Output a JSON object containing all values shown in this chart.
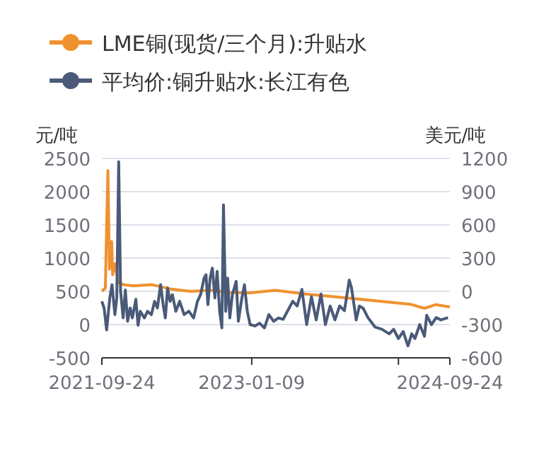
{
  "chart_data": {
    "type": "line",
    "ylabel": "元/吨",
    "y2label": "美元/吨",
    "grid": "y",
    "legend": "top left",
    "xlim": [
      "2021-09-24",
      "2024-09-24"
    ],
    "xticks": [
      {
        "value": "2021-09-24",
        "label": "2021-09-24"
      },
      {
        "value": "2023-01-09",
        "label": "2023-01-09"
      },
      {
        "value": "2024-04-15",
        "label": null
      },
      {
        "value": "2024-09-24",
        "label": "2024-09-24"
      }
    ],
    "ylim": [
      -500,
      2500
    ],
    "yticks": [
      -500,
      0,
      500,
      1000,
      1500,
      2000,
      2500
    ],
    "y2lim": [
      -600,
      1200
    ],
    "y2ticks": [
      -600,
      -300,
      0,
      300,
      600,
      900,
      1200
    ],
    "series": [
      {
        "name": "LME铜(现货/三个月):升贴水",
        "color": "#f0912f",
        "axis": "y2",
        "x": [
          "2021-09-24",
          "2021-10-05",
          "2021-10-13",
          "2021-10-18",
          "2021-10-21",
          "2021-10-25",
          "2021-10-28",
          "2021-11-05",
          "2021-11-15",
          "2021-12-01",
          "2022-01-01",
          "2022-03-01",
          "2022-05-01",
          "2022-07-01",
          "2022-09-01",
          "2022-11-01",
          "2023-01-01",
          "2023-03-25",
          "2023-06-15",
          "2023-10-11",
          "2024-01-15",
          "2024-05-22",
          "2024-07-06",
          "2024-08-10",
          "2024-09-24"
        ],
        "values": [
          0,
          30,
          1090,
          200,
          400,
          450,
          150,
          250,
          80,
          60,
          50,
          60,
          20,
          0,
          10,
          -10,
          -14,
          10,
          -20,
          -53,
          -80,
          -116,
          -153,
          -120,
          -140
        ]
      },
      {
        "name": "平均价:铜升贴水:长江有色",
        "color": "#4a5a78",
        "x": [
          "2021-09-24",
          "2021-10-01",
          "2021-10-09",
          "2021-10-19",
          "2021-10-26",
          "2021-11-04",
          "2021-11-10",
          "2021-11-16",
          "2021-11-22",
          "2021-11-30",
          "2021-12-07",
          "2021-12-14",
          "2021-12-22",
          "2021-12-29",
          "2022-01-09",
          "2022-01-16",
          "2022-01-23",
          "2022-02-05",
          "2022-02-15",
          "2022-02-27",
          "2022-03-09",
          "2022-03-18",
          "2022-03-28",
          "2022-04-05",
          "2022-04-12",
          "2022-04-19",
          "2022-04-27",
          "2022-05-04",
          "2022-05-15",
          "2022-05-27",
          "2022-06-10",
          "2022-06-25",
          "2022-07-10",
          "2022-07-22",
          "2022-08-01",
          "2022-08-12",
          "2022-08-18",
          "2022-08-24",
          "2022-08-31",
          "2022-09-07",
          "2022-09-15",
          "2022-09-22",
          "2022-09-30",
          "2022-10-07",
          "2022-10-12",
          "2022-10-19",
          "2022-10-25",
          "2022-11-01",
          "2022-11-09",
          "2022-11-21",
          "2022-11-28",
          "2022-12-09",
          "2022-12-17",
          "2022-12-26",
          "2023-01-04",
          "2023-01-19",
          "2023-02-03",
          "2023-02-18",
          "2023-03-04",
          "2023-03-19",
          "2023-04-03",
          "2023-04-18",
          "2023-05-18",
          "2023-06-01",
          "2023-06-16",
          "2023-07-01",
          "2023-07-16",
          "2023-07-31",
          "2023-08-15",
          "2023-08-29",
          "2023-09-13",
          "2023-09-28",
          "2023-10-13",
          "2023-10-28",
          "2023-11-12",
          "2023-11-19",
          "2023-12-04",
          "2023-12-14",
          "2023-12-26",
          "2024-01-10",
          "2024-02-01",
          "2024-02-23",
          "2024-03-17",
          "2024-03-31",
          "2024-04-15",
          "2024-04-30",
          "2024-05-15",
          "2024-05-27",
          "2024-06-06",
          "2024-06-21",
          "2024-07-06",
          "2024-07-13",
          "2024-07-28",
          "2024-08-12",
          "2024-08-27",
          "2024-09-18"
        ],
        "values": [
          350,
          250,
          -80,
          400,
          600,
          150,
          400,
          2450,
          500,
          100,
          520,
          50,
          250,
          100,
          380,
          -10,
          200,
          100,
          200,
          150,
          350,
          250,
          600,
          300,
          100,
          550,
          350,
          450,
          200,
          350,
          150,
          200,
          100,
          350,
          450,
          700,
          750,
          300,
          700,
          850,
          400,
          800,
          200,
          -50,
          1800,
          200,
          700,
          100,
          450,
          650,
          50,
          400,
          600,
          200,
          0,
          -20,
          20,
          -50,
          150,
          50,
          100,
          80,
          350,
          280,
          530,
          0,
          420,
          70,
          460,
          0,
          280,
          70,
          280,
          210,
          670,
          560,
          70,
          280,
          245,
          105,
          -35,
          -70,
          -140,
          -70,
          -210,
          -105,
          -320,
          -140,
          -210,
          0,
          -175,
          140,
          0,
          105,
          70,
          105
        ]
      }
    ]
  }
}
